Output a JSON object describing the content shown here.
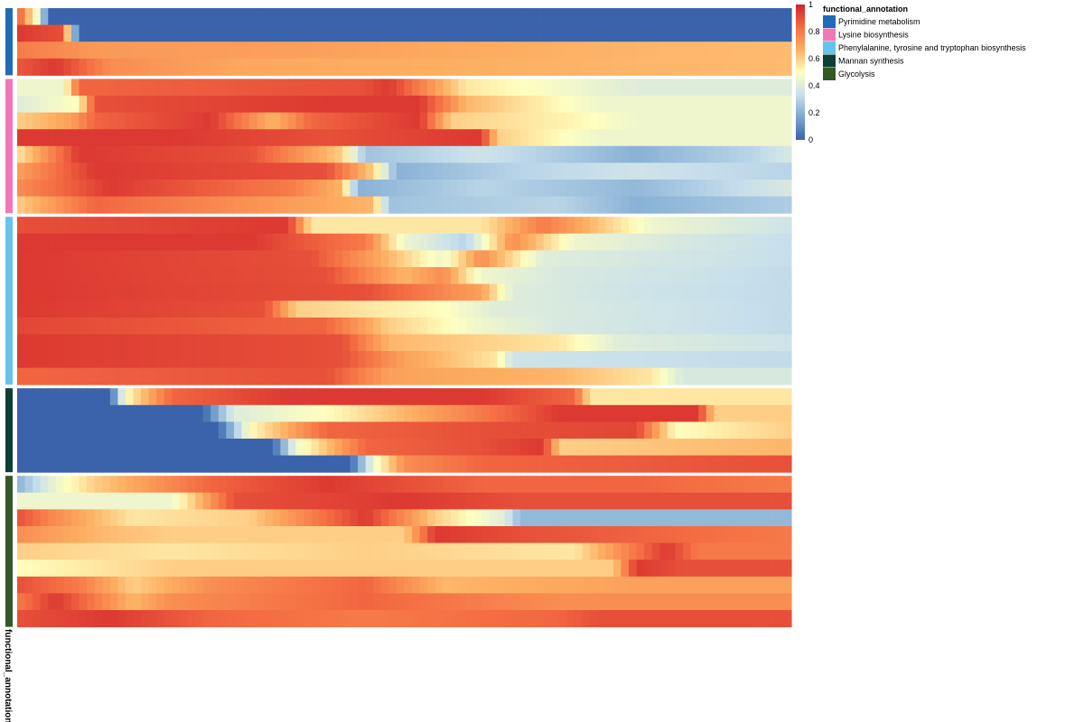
{
  "chart_data": {
    "type": "heatmap",
    "title": "",
    "annotation_name": "functional_annotation",
    "legend": {
      "title": "functional_annotation",
      "placement": "top-right",
      "entries": [
        {
          "label": "Pyrimidine metabolism",
          "color": "#1f6bb6"
        },
        {
          "label": "Lysine biosynthesis",
          "color": "#f178b6"
        },
        {
          "label": "Phenylalanine, tyrosine and tryptophan biosynthesis",
          "color": "#64c4ee"
        },
        {
          "label": "Mannan synthesis",
          "color": "#0c3f36"
        },
        {
          "label": "Glycolysis",
          "color": "#335a25"
        }
      ]
    },
    "colorbar": {
      "range": [
        0,
        1
      ],
      "ticks": [
        "0",
        "0.2",
        "0.4",
        "0.6",
        "0.8",
        "1"
      ],
      "palette": [
        "#3b63ab",
        "#7aa6d0",
        "#c8e0ec",
        "#ffffbf",
        "#fdae61",
        "#f46d43",
        "#d2232a"
      ]
    },
    "n_columns": 100,
    "groups": [
      {
        "name": "Pyrimidine metabolism",
        "rows": [
          [
            [
              0,
              0.9
            ],
            [
              2,
              0.55
            ],
            [
              3,
              0.4
            ],
            [
              4,
              0.0
            ],
            [
              100,
              0.0
            ]
          ],
          [
            [
              0,
              0.95
            ],
            [
              6,
              0.9
            ],
            [
              7,
              0.35
            ],
            [
              8,
              0.0
            ],
            [
              100,
              0.0
            ]
          ],
          [
            [
              0,
              0.8
            ],
            [
              10,
              0.72
            ],
            [
              40,
              0.7
            ],
            [
              70,
              0.66
            ],
            [
              100,
              0.64
            ]
          ],
          [
            [
              0,
              0.88
            ],
            [
              5,
              0.95
            ],
            [
              12,
              0.75
            ],
            [
              30,
              0.68
            ],
            [
              100,
              0.64
            ]
          ]
        ]
      },
      {
        "name": "Lysine biosynthesis",
        "rows": [
          [
            [
              0,
              0.45
            ],
            [
              6,
              0.45
            ],
            [
              8,
              0.85
            ],
            [
              45,
              0.9
            ],
            [
              48,
              0.95
            ],
            [
              58,
              0.55
            ],
            [
              65,
              0.5
            ],
            [
              80,
              0.4
            ],
            [
              100,
              0.4
            ]
          ],
          [
            [
              0,
              0.4
            ],
            [
              8,
              0.5
            ],
            [
              10,
              0.9
            ],
            [
              40,
              0.95
            ],
            [
              52,
              0.95
            ],
            [
              58,
              0.65
            ],
            [
              75,
              0.45
            ],
            [
              100,
              0.45
            ]
          ],
          [
            [
              0,
              0.6
            ],
            [
              7,
              0.7
            ],
            [
              10,
              0.85
            ],
            [
              25,
              0.95
            ],
            [
              33,
              0.65
            ],
            [
              38,
              0.85
            ],
            [
              52,
              0.95
            ],
            [
              56,
              0.6
            ],
            [
              72,
              0.52
            ],
            [
              80,
              0.45
            ],
            [
              100,
              0.45
            ]
          ],
          [
            [
              0,
              0.95
            ],
            [
              20,
              0.95
            ],
            [
              40,
              0.9
            ],
            [
              60,
              0.95
            ],
            [
              62,
              0.6
            ],
            [
              75,
              0.45
            ],
            [
              100,
              0.45
            ]
          ],
          [
            [
              0,
              0.55
            ],
            [
              8,
              0.95
            ],
            [
              30,
              0.9
            ],
            [
              42,
              0.6
            ],
            [
              45,
              0.25
            ],
            [
              60,
              0.35
            ],
            [
              80,
              0.2
            ],
            [
              95,
              0.3
            ],
            [
              100,
              0.38
            ]
          ],
          [
            [
              0,
              0.7
            ],
            [
              10,
              0.95
            ],
            [
              40,
              0.9
            ],
            [
              46,
              0.6
            ],
            [
              49,
              0.2
            ],
            [
              65,
              0.3
            ],
            [
              80,
              0.35
            ],
            [
              100,
              0.3
            ]
          ],
          [
            [
              0,
              0.75
            ],
            [
              12,
              0.95
            ],
            [
              35,
              0.8
            ],
            [
              42,
              0.65
            ],
            [
              44,
              0.2
            ],
            [
              60,
              0.3
            ],
            [
              80,
              0.22
            ],
            [
              100,
              0.38
            ]
          ],
          [
            [
              0,
              0.6
            ],
            [
              10,
              0.85
            ],
            [
              28,
              0.75
            ],
            [
              46,
              0.65
            ],
            [
              48,
              0.25
            ],
            [
              70,
              0.3
            ],
            [
              80,
              0.2
            ],
            [
              100,
              0.28
            ]
          ]
        ]
      },
      {
        "name": "Phenylalanine, tyrosine and tryptophan biosynthesis",
        "rows": [
          [
            [
              0,
              0.9
            ],
            [
              35,
              0.95
            ],
            [
              38,
              0.55
            ],
            [
              60,
              0.55
            ],
            [
              68,
              0.8
            ],
            [
              76,
              0.6
            ],
            [
              82,
              0.45
            ],
            [
              100,
              0.35
            ]
          ],
          [
            [
              0,
              0.95
            ],
            [
              30,
              0.95
            ],
            [
              45,
              0.8
            ],
            [
              50,
              0.45
            ],
            [
              58,
              0.3
            ],
            [
              64,
              0.75
            ],
            [
              72,
              0.45
            ],
            [
              85,
              0.38
            ],
            [
              100,
              0.33
            ]
          ],
          [
            [
              0,
              0.95
            ],
            [
              38,
              0.9
            ],
            [
              48,
              0.65
            ],
            [
              55,
              0.45
            ],
            [
              60,
              0.75
            ],
            [
              68,
              0.4
            ],
            [
              100,
              0.33
            ]
          ],
          [
            [
              0,
              0.95
            ],
            [
              40,
              0.9
            ],
            [
              50,
              0.65
            ],
            [
              55,
              0.75
            ],
            [
              60,
              0.45
            ],
            [
              70,
              0.38
            ],
            [
              100,
              0.32
            ]
          ],
          [
            [
              0,
              0.95
            ],
            [
              45,
              0.9
            ],
            [
              60,
              0.7
            ],
            [
              64,
              0.4
            ],
            [
              80,
              0.35
            ],
            [
              100,
              0.32
            ]
          ],
          [
            [
              0,
              0.95
            ],
            [
              32,
              0.9
            ],
            [
              36,
              0.6
            ],
            [
              55,
              0.5
            ],
            [
              62,
              0.4
            ],
            [
              100,
              0.32
            ]
          ],
          [
            [
              0,
              0.92
            ],
            [
              40,
              0.85
            ],
            [
              48,
              0.6
            ],
            [
              60,
              0.45
            ],
            [
              70,
              0.38
            ],
            [
              100,
              0.32
            ]
          ],
          [
            [
              0,
              0.95
            ],
            [
              42,
              0.9
            ],
            [
              48,
              0.65
            ],
            [
              70,
              0.55
            ],
            [
              78,
              0.4
            ],
            [
              100,
              0.35
            ]
          ],
          [
            [
              0,
              0.95
            ],
            [
              42,
              0.9
            ],
            [
              50,
              0.7
            ],
            [
              62,
              0.55
            ],
            [
              64,
              0.35
            ],
            [
              100,
              0.32
            ]
          ],
          [
            [
              0,
              0.85
            ],
            [
              40,
              0.9
            ],
            [
              48,
              0.7
            ],
            [
              70,
              0.65
            ],
            [
              82,
              0.55
            ],
            [
              86,
              0.38
            ],
            [
              100,
              0.38
            ]
          ]
        ]
      },
      {
        "name": "Mannan synthesis",
        "rows": [
          [
            [
              0,
              0.0
            ],
            [
              12,
              0.0
            ],
            [
              14,
              0.5
            ],
            [
              20,
              0.85
            ],
            [
              35,
              0.95
            ],
            [
              60,
              0.95
            ],
            [
              72,
              0.85
            ],
            [
              74,
              0.55
            ],
            [
              100,
              0.55
            ]
          ],
          [
            [
              0,
              0.0
            ],
            [
              24,
              0.0
            ],
            [
              28,
              0.4
            ],
            [
              40,
              0.5
            ],
            [
              50,
              0.65
            ],
            [
              70,
              0.95
            ],
            [
              88,
              0.95
            ],
            [
              90,
              0.6
            ],
            [
              100,
              0.6
            ]
          ],
          [
            [
              0,
              0.0
            ],
            [
              26,
              0.0
            ],
            [
              30,
              0.5
            ],
            [
              40,
              0.85
            ],
            [
              60,
              0.9
            ],
            [
              80,
              0.92
            ],
            [
              85,
              0.5
            ],
            [
              100,
              0.6
            ]
          ],
          [
            [
              0,
              0.0
            ],
            [
              33,
              0.0
            ],
            [
              36,
              0.45
            ],
            [
              45,
              0.85
            ],
            [
              60,
              0.9
            ],
            [
              68,
              0.95
            ],
            [
              70,
              0.6
            ],
            [
              100,
              0.65
            ]
          ],
          [
            [
              0,
              0.0
            ],
            [
              43,
              0.0
            ],
            [
              46,
              0.45
            ],
            [
              50,
              0.75
            ],
            [
              60,
              0.85
            ],
            [
              100,
              0.9
            ]
          ]
        ]
      },
      {
        "name": "Glycolysis",
        "rows": [
          [
            [
              0,
              0.2
            ],
            [
              5,
              0.45
            ],
            [
              10,
              0.6
            ],
            [
              25,
              0.85
            ],
            [
              40,
              0.95
            ],
            [
              60,
              0.85
            ],
            [
              80,
              0.85
            ],
            [
              100,
              0.8
            ]
          ],
          [
            [
              0,
              0.45
            ],
            [
              20,
              0.45
            ],
            [
              28,
              0.9
            ],
            [
              50,
              0.95
            ],
            [
              65,
              0.9
            ],
            [
              100,
              0.9
            ]
          ],
          [
            [
              0,
              0.9
            ],
            [
              5,
              0.75
            ],
            [
              15,
              0.55
            ],
            [
              30,
              0.6
            ],
            [
              45,
              0.95
            ],
            [
              54,
              0.6
            ],
            [
              63,
              0.4
            ],
            [
              65,
              0.22
            ],
            [
              100,
              0.22
            ]
          ],
          [
            [
              0,
              0.75
            ],
            [
              10,
              0.65
            ],
            [
              20,
              0.6
            ],
            [
              50,
              0.6
            ],
            [
              54,
              0.95
            ],
            [
              65,
              0.9
            ],
            [
              100,
              0.8
            ]
          ],
          [
            [
              0,
              0.6
            ],
            [
              20,
              0.55
            ],
            [
              45,
              0.6
            ],
            [
              72,
              0.55
            ],
            [
              78,
              0.75
            ],
            [
              84,
              0.95
            ],
            [
              88,
              0.8
            ],
            [
              100,
              0.8
            ]
          ],
          [
            [
              0,
              0.5
            ],
            [
              20,
              0.6
            ],
            [
              77,
              0.6
            ],
            [
              80,
              0.95
            ],
            [
              86,
              0.9
            ],
            [
              100,
              0.9
            ]
          ],
          [
            [
              0,
              0.9
            ],
            [
              8,
              0.8
            ],
            [
              15,
              0.6
            ],
            [
              25,
              0.75
            ],
            [
              45,
              0.85
            ],
            [
              55,
              0.65
            ],
            [
              80,
              0.7
            ],
            [
              100,
              0.7
            ]
          ],
          [
            [
              0,
              0.8
            ],
            [
              5,
              0.95
            ],
            [
              15,
              0.65
            ],
            [
              20,
              0.75
            ],
            [
              45,
              0.85
            ],
            [
              70,
              0.75
            ],
            [
              100,
              0.75
            ]
          ],
          [
            [
              0,
              0.9
            ],
            [
              12,
              0.95
            ],
            [
              25,
              0.85
            ],
            [
              45,
              0.8
            ],
            [
              70,
              0.85
            ],
            [
              75,
              0.9
            ],
            [
              100,
              0.9
            ]
          ]
        ]
      }
    ]
  }
}
